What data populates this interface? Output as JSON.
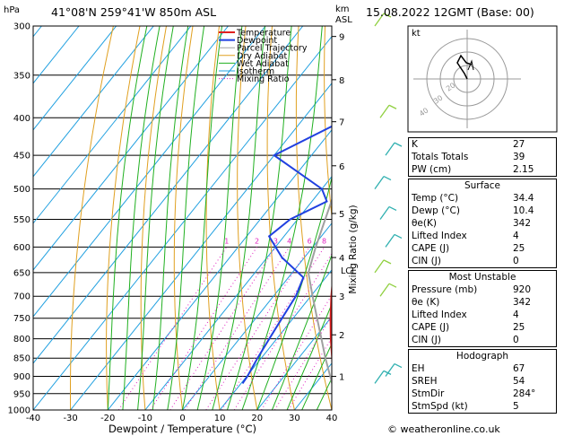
{
  "header": {
    "location": "41°08'N  259°41'W  850m  ASL",
    "datetime": "15.08.2022  12GMT  (Base: 00)"
  },
  "hodograph": {
    "label": "kt",
    "ring_labels": [
      "40",
      "30",
      "20"
    ]
  },
  "indices": [
    {
      "label": "K",
      "value": "27"
    },
    {
      "label": "Totals Totals",
      "value": "39"
    },
    {
      "label": "PW (cm)",
      "value": "2.15"
    }
  ],
  "surface": {
    "title": "Surface",
    "rows": [
      {
        "label": "Temp (°C)",
        "value": "34.4"
      },
      {
        "label": "Dewp (°C)",
        "value": "10.4"
      },
      {
        "label": "θe(K)",
        "value": "342"
      },
      {
        "label": "Lifted Index",
        "value": "4"
      },
      {
        "label": "CAPE (J)",
        "value": "25"
      },
      {
        "label": "CIN (J)",
        "value": "0"
      }
    ]
  },
  "most_unstable": {
    "title": "Most Unstable",
    "rows": [
      {
        "label": "Pressure (mb)",
        "value": "920"
      },
      {
        "label": "θe (K)",
        "value": "342"
      },
      {
        "label": "Lifted Index",
        "value": "4"
      },
      {
        "label": "CAPE (J)",
        "value": "25"
      },
      {
        "label": "CIN (J)",
        "value": "0"
      }
    ]
  },
  "hodograph_table": {
    "title": "Hodograph",
    "rows": [
      {
        "label": "EH",
        "value": "67"
      },
      {
        "label": "SREH",
        "value": "54"
      },
      {
        "label": "StmDir",
        "value": "284°"
      },
      {
        "label": "StmSpd (kt)",
        "value": "5"
      }
    ]
  },
  "copyright": "© weatheronline.co.uk",
  "colors": {
    "temperature": "#e02020",
    "dewpoint": "#2040e0",
    "parcel": "#a0a0a0",
    "dry_adiabat": "#e0a020",
    "wet_adiabat": "#20b020",
    "isotherm": "#20a0e0",
    "mixing_ratio": "#e020c0"
  },
  "chart_data": {
    "type": "line",
    "title": "",
    "xlabel": "Dewpoint / Temperature (°C)",
    "ylabel_left": "hPa",
    "ylabel_right": "Mixing Ratio (g/kg)",
    "km_label": "km\nASL",
    "xlim": [
      -40,
      40
    ],
    "ylim": [
      1000,
      300
    ],
    "x_ticks": [
      "-40",
      "-30",
      "-20",
      "-10",
      "0",
      "10",
      "20",
      "30",
      "40"
    ],
    "pressure_ticks": [
      "300",
      "350",
      "400",
      "450",
      "500",
      "550",
      "600",
      "650",
      "700",
      "750",
      "800",
      "850",
      "900",
      "950",
      "1000"
    ],
    "km_ticks": [
      {
        "label": "9",
        "p": 310
      },
      {
        "label": "8",
        "p": 355
      },
      {
        "label": "7",
        "p": 405
      },
      {
        "label": "6",
        "p": 465
      },
      {
        "label": "5",
        "p": 540
      },
      {
        "label": "4",
        "p": 620
      },
      {
        "label": "3",
        "p": 700
      },
      {
        "label": "2",
        "p": 790
      },
      {
        "label": "1",
        "p": 900
      }
    ],
    "lcl": {
      "label": "LCL",
      "p": 645
    },
    "mixing_ratio_labels": [
      "1",
      "2",
      "3",
      "4",
      "6",
      "8",
      "10",
      "16",
      "20",
      "25"
    ],
    "legend": [
      "Temperature",
      "Dewpoint",
      "Parcel Trajectory",
      "Dry Adiabat",
      "Wet Adiabat",
      "Isotherm",
      "Mixing Ratio"
    ],
    "series": [
      {
        "name": "Temperature",
        "points": [
          [
            920,
            34.4
          ],
          [
            900,
            33
          ],
          [
            850,
            29
          ],
          [
            800,
            24.5
          ],
          [
            750,
            20
          ],
          [
            700,
            15.5
          ],
          [
            650,
            11
          ],
          [
            620,
            9
          ],
          [
            580,
            8.5
          ],
          [
            550,
            9
          ],
          [
            500,
            3
          ],
          [
            450,
            -3
          ],
          [
            400,
            -11
          ],
          [
            350,
            -20
          ]
        ]
      },
      {
        "name": "Dewpoint",
        "points": [
          [
            920,
            10.4
          ],
          [
            900,
            10.2
          ],
          [
            850,
            9
          ],
          [
            800,
            8
          ],
          [
            750,
            7
          ],
          [
            700,
            6
          ],
          [
            660,
            4
          ],
          [
            620,
            -6
          ],
          [
            580,
            -14
          ],
          [
            550,
            -12
          ],
          [
            520,
            -6
          ],
          [
            500,
            -10
          ],
          [
            450,
            -30
          ],
          [
            400,
            -18
          ],
          [
            380,
            -17
          ],
          [
            370,
            -27
          ],
          [
            350,
            -21
          ],
          [
            330,
            -16
          ],
          [
            310,
            -10
          ],
          [
            300,
            -8
          ]
        ]
      },
      {
        "name": "Parcel Trajectory",
        "points": [
          [
            920,
            34.4
          ],
          [
            850,
            27.2
          ],
          [
            800,
            22
          ],
          [
            750,
            16.4
          ],
          [
            700,
            10.5
          ],
          [
            650,
            4.3
          ],
          [
            600,
            0.8
          ],
          [
            550,
            -2.6
          ],
          [
            500,
            -6.3
          ],
          [
            450,
            -10.3
          ],
          [
            400,
            -15
          ],
          [
            350,
            -20.3
          ],
          [
            300,
            -26.5
          ]
        ]
      }
    ]
  }
}
